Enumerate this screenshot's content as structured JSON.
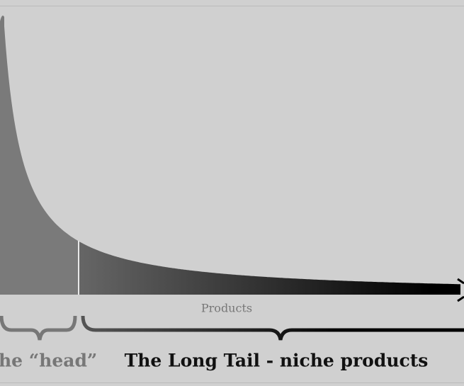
{
  "axis_label": "Products",
  "head_label": "he “head”",
  "tail_label": "The Long Tail - niche products"
}
